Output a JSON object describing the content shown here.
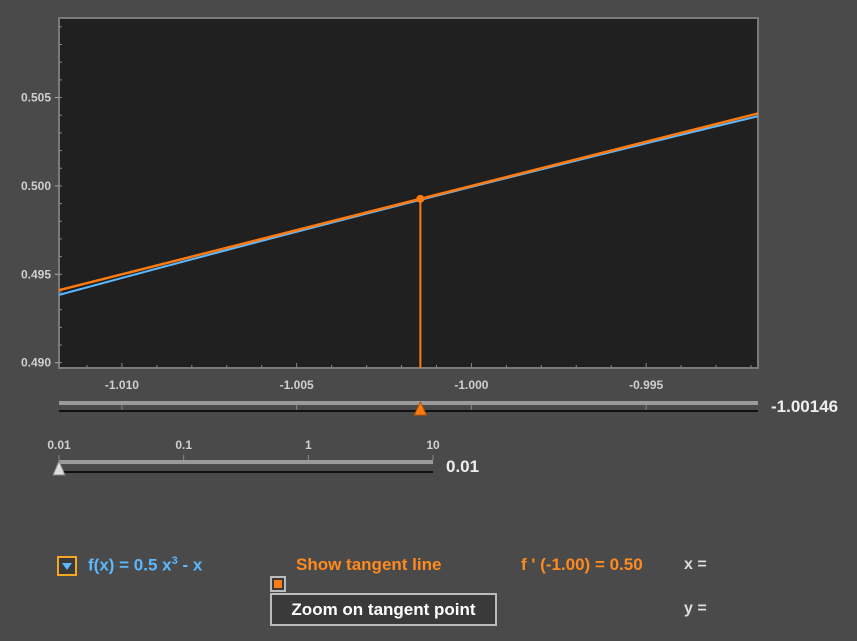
{
  "chart_data": {
    "type": "line",
    "title": "",
    "xlabel": "",
    "ylabel": "",
    "xlim": [
      -1.0118,
      -0.9918
    ],
    "ylim": [
      0.4897,
      0.5095
    ],
    "x_ticks": [
      -1.01,
      -1.005,
      -1.0,
      -0.995
    ],
    "x_tick_labels": [
      "-1.010",
      "-1.005",
      "-1.000",
      "-0.995"
    ],
    "y_ticks": [
      0.49,
      0.495,
      0.5,
      0.505
    ],
    "y_tick_labels": [
      "0.490",
      "0.495",
      "0.500",
      "0.505"
    ],
    "series": [
      {
        "function": "0.5*x^3 - x",
        "color": "#5cb8ff"
      },
      {
        "function": "tangent",
        "slope": 0.5,
        "color": "#ff7a10"
      }
    ],
    "tangent_point": {
      "x": -1.00146,
      "y": 0.49927
    },
    "grid": false
  },
  "x_slider": {
    "value": "-1.00146"
  },
  "zoom_slider": {
    "tick_labels": [
      "0.01",
      "0.1",
      "1",
      "10"
    ],
    "value": "0.01"
  },
  "controls": {
    "function_label": "f(x) = 0.5 x",
    "function_exponent": "3",
    "function_suffix": " - x",
    "show_tangent_label": "Show tangent line",
    "show_tangent_checked": true,
    "derivative_label": "f ' (-1.00) = 0.50",
    "x_label": "x =",
    "y_label": "y =",
    "zoom_button_label": "Zoom on tangent point"
  },
  "colors": {
    "function": "#5cb8ff",
    "tangent": "#ff7a10",
    "plot_background": "#202020",
    "panel_background": "#4a4a4a"
  }
}
